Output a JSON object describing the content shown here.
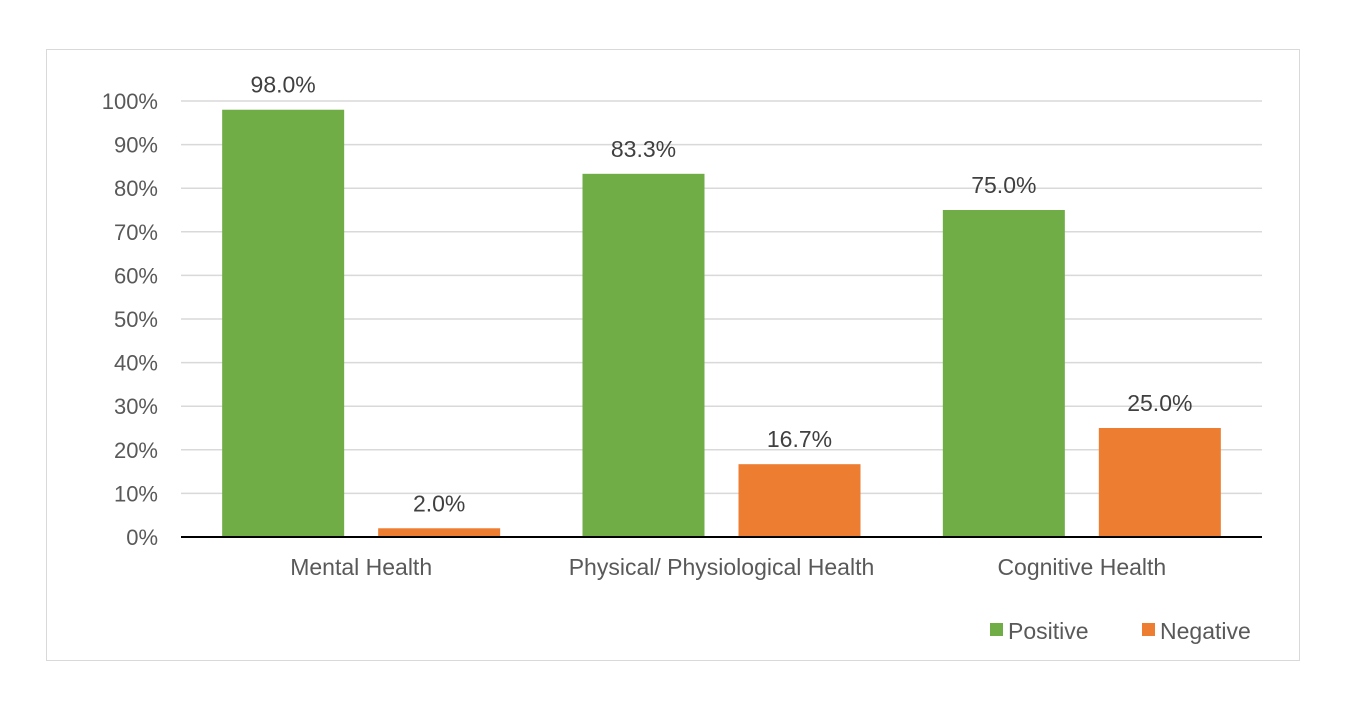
{
  "chart_data": {
    "type": "bar",
    "categories": [
      "Mental Health",
      "Physical/ Physiological Health",
      "Cognitive Health"
    ],
    "series": [
      {
        "name": "Positive",
        "values": [
          98.0,
          83.3,
          75.0
        ],
        "labels": [
          "98.0%",
          "83.3%",
          "75.0%"
        ],
        "color": "#70ad47"
      },
      {
        "name": "Negative",
        "values": [
          2.0,
          16.7,
          25.0
        ],
        "labels": [
          "2.0%",
          "16.7%",
          "25.0%"
        ],
        "color": "#ed7d31"
      }
    ],
    "ylim": [
      0,
      100
    ],
    "yticks": [
      0,
      10,
      20,
      30,
      40,
      50,
      60,
      70,
      80,
      90,
      100
    ],
    "ytick_labels": [
      "0%",
      "10%",
      "20%",
      "30%",
      "40%",
      "50%",
      "60%",
      "70%",
      "80%",
      "90%",
      "100%"
    ],
    "grid": true,
    "legend": "bottom-right",
    "title": "",
    "xlabel": "",
    "ylabel": ""
  }
}
